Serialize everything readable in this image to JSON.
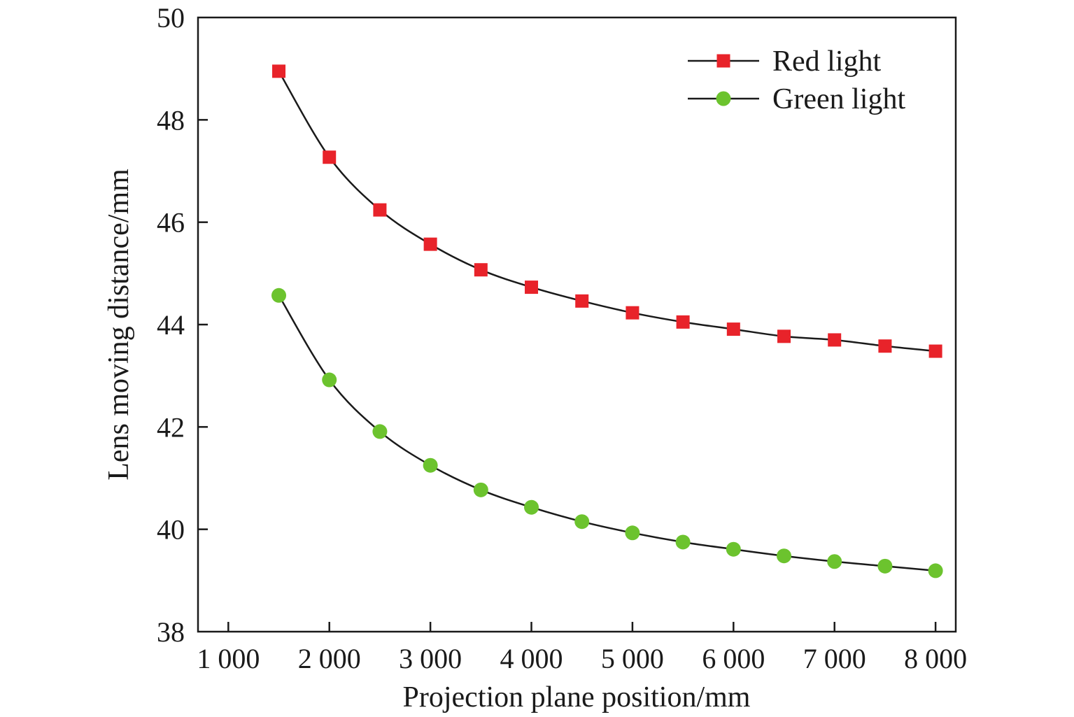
{
  "chart_data": {
    "type": "line",
    "xlabel": "Projection plane position/mm",
    "ylabel": "Lens moving distance/mm",
    "xlim": [
      700,
      8200
    ],
    "ylim": [
      38,
      50
    ],
    "x_ticks": [
      1000,
      2000,
      3000,
      4000,
      5000,
      6000,
      7000,
      8000
    ],
    "x_tick_labels": [
      "1 000",
      "2 000",
      "3 000",
      "4 000",
      "5 000",
      "6 000",
      "7 000",
      "8 000"
    ],
    "y_ticks": [
      38,
      40,
      42,
      44,
      46,
      48,
      50
    ],
    "y_tick_labels": [
      "38",
      "40",
      "42",
      "44",
      "46",
      "48",
      "50"
    ],
    "grid": false,
    "legend_position": "top-right",
    "x": [
      1500,
      2000,
      2500,
      3000,
      3500,
      4000,
      4500,
      5000,
      5500,
      6000,
      6500,
      7000,
      7500,
      8000
    ],
    "series": [
      {
        "name": "Red light",
        "marker": "square",
        "color": "#e8232a",
        "values": [
          48.95,
          47.27,
          46.24,
          45.57,
          45.07,
          44.73,
          44.46,
          44.23,
          44.05,
          43.91,
          43.77,
          43.7,
          43.58,
          43.48
        ]
      },
      {
        "name": "Green light",
        "marker": "circle",
        "color": "#6cc32e",
        "values": [
          44.57,
          42.92,
          41.91,
          41.25,
          40.77,
          40.43,
          40.15,
          39.93,
          39.75,
          39.61,
          39.48,
          39.37,
          39.28,
          39.19
        ]
      }
    ]
  }
}
